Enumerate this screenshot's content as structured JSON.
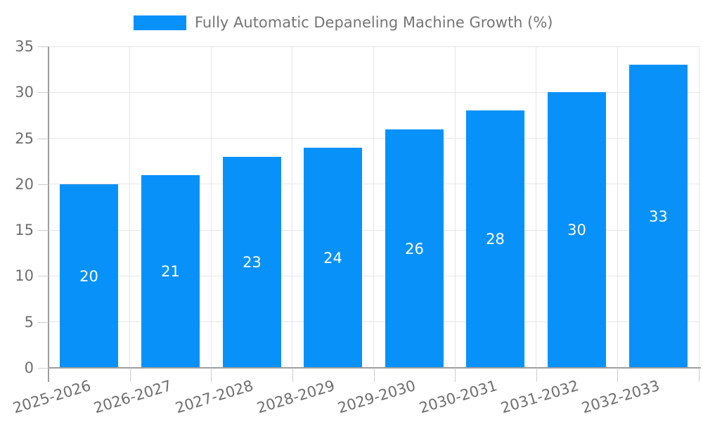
{
  "legend": {
    "label": "Fully Automatic Depaneling Machine Growth (%)"
  },
  "chart_data": {
    "type": "bar",
    "title": "Fully Automatic Depaneling Machine Growth (%)",
    "categories": [
      "2025-2026",
      "2026-2027",
      "2027-2028",
      "2028-2029",
      "2029-2030",
      "2030-2031",
      "2031-2032",
      "2032-2033"
    ],
    "values": [
      20,
      21,
      23,
      24,
      26,
      28,
      30,
      33
    ],
    "xlabel": "",
    "ylabel": "",
    "ylim": [
      0,
      35
    ],
    "yticks": [
      0,
      5,
      10,
      15,
      20,
      25,
      30,
      35
    ],
    "grid": true,
    "legend_position": "top",
    "value_labels": "inside-center",
    "xtick_angle_deg": -17
  },
  "colors": {
    "bar": "#0991fa",
    "grid": "#e6e6e6",
    "tick": "#cccccc",
    "axis": "#9e9e9e",
    "label": "#6e6e6e",
    "legend_text": "#757575",
    "value_label": "#ffffff",
    "background": "#ffffff"
  }
}
